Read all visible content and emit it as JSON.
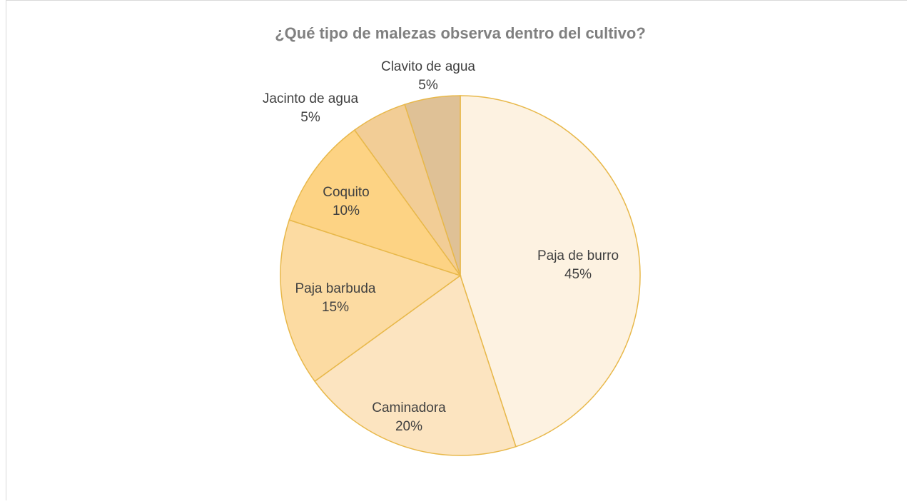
{
  "chart_data": {
    "type": "pie",
    "title": "¿Qué tipo de malezas observa dentro del cultivo?",
    "categories": [
      "Paja de burro",
      "Caminadora",
      "Paja barbuda",
      "Coquito",
      "Jacinto de agua",
      "Clavito de agua"
    ],
    "values": [
      45,
      20,
      15,
      10,
      5,
      5
    ],
    "value_labels": [
      "45%",
      "20%",
      "15%",
      "10%",
      "5%",
      "5%"
    ],
    "colors": [
      "#fdf2e1",
      "#fce4c0",
      "#fcdba2",
      "#fdd384",
      "#f2cd96",
      "#dfc196"
    ]
  }
}
